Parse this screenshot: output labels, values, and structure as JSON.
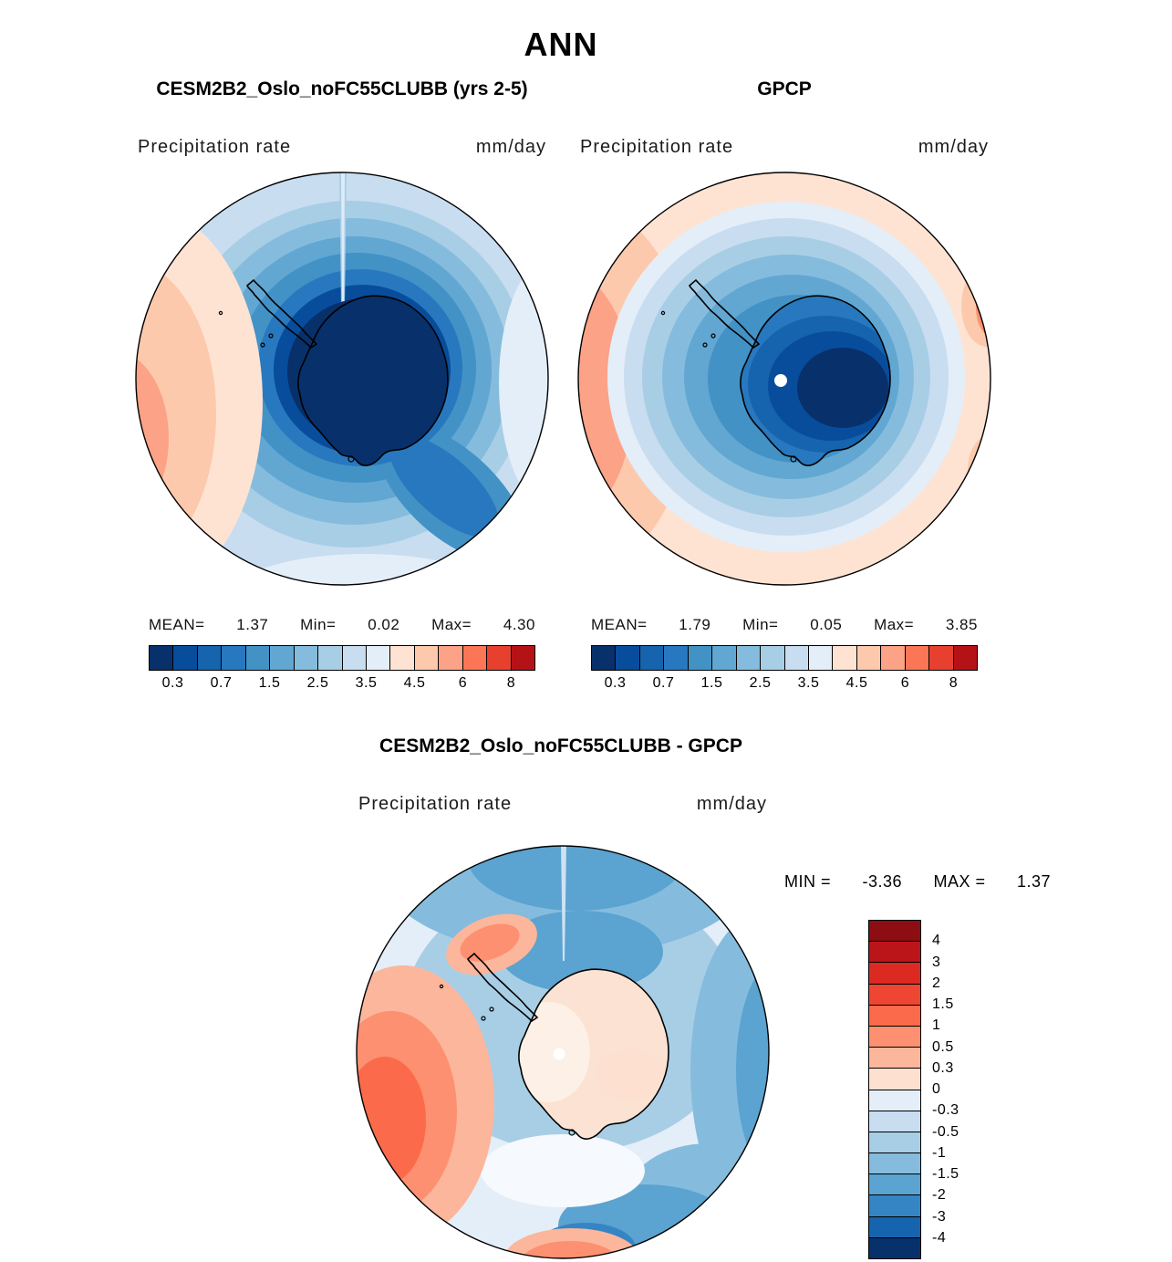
{
  "title": "ANN",
  "panels": [
    {
      "subtitle": "CESM2B2_Oslo_noFC55CLUBB (yrs 2-5)",
      "field_label": "Precipitation rate",
      "units": "mm/day",
      "stats": {
        "mean_label": "MEAN=",
        "mean": "1.37",
        "min_label": "Min=",
        "min": "0.02",
        "max_label": "Max=",
        "max": "4.30"
      },
      "colorbar_tick_labels": [
        "0.3",
        "0.7",
        "1.5",
        "2.5",
        "3.5",
        "4.5",
        "6",
        "8"
      ]
    },
    {
      "subtitle": "GPCP",
      "field_label": "Precipitation rate",
      "units": "mm/day",
      "stats": {
        "mean_label": "MEAN=",
        "mean": "1.79",
        "min_label": "Min=",
        "min": "0.05",
        "max_label": "Max=",
        "max": "3.85"
      },
      "colorbar_tick_labels": [
        "0.3",
        "0.7",
        "1.5",
        "2.5",
        "3.5",
        "4.5",
        "6",
        "8"
      ]
    }
  ],
  "precip_colorbar": {
    "colors": [
      "#08306b",
      "#084d9c",
      "#1663ae",
      "#2878bf",
      "#4292c6",
      "#61a7d2",
      "#85bcdd",
      "#a8cee6",
      "#c9ddf0",
      "#e3eef9",
      "#fee3d3",
      "#fdc9ac",
      "#fca286",
      "#fb7656",
      "#e8402f",
      "#b51218"
    ]
  },
  "diff": {
    "title": "CESM2B2_Oslo_noFC55CLUBB - GPCP",
    "field_label": "Precipitation rate",
    "units": "mm/day",
    "stats": {
      "min_label": "MIN =",
      "min": "-3.36",
      "max_label": "MAX =",
      "max": "1.37"
    },
    "colorbar": {
      "labels": [
        "4",
        "3",
        "2",
        "1.5",
        "1",
        "0.5",
        "0.3",
        "0",
        "-0.3",
        "-0.5",
        "-1",
        "-1.5",
        "-2",
        "-3",
        "-4"
      ],
      "colors": [
        "#8c0d12",
        "#bb1419",
        "#dc2a23",
        "#ef4533",
        "#fb6a4a",
        "#fc9070",
        "#fcb69b",
        "#fee0d0",
        "#e4eef8",
        "#c9ddf0",
        "#a8cee6",
        "#85bcdd",
        "#5ba3d0",
        "#3585c4",
        "#1663ae",
        "#08306b"
      ]
    }
  },
  "chart_data": [
    {
      "type": "heatmap",
      "subtype": "polar-stereographic-filled-contour-map",
      "title": "CESM2B2_Oslo_noFC55CLUBB (yrs 2-5)",
      "variable": "Precipitation rate",
      "units": "mm/day",
      "region": "Antarctica / Southern Ocean (south polar view)",
      "stats": {
        "mean": 1.37,
        "min": 0.02,
        "max": 4.3
      },
      "contour_levels": [
        0.3,
        0.7,
        1.5,
        2.5,
        3.5,
        4.5,
        6,
        8
      ],
      "palette": "blue (low) to red (high), 16 bands",
      "legend_position": "bottom",
      "notes": "Lowest values (dark blue) over Antarctic interior; highest values (orange/red) toward map edge at lower latitudes, strongest on left edge"
    },
    {
      "type": "heatmap",
      "subtype": "polar-stereographic-filled-contour-map",
      "title": "GPCP",
      "variable": "Precipitation rate",
      "units": "mm/day",
      "region": "Antarctica / Southern Ocean (south polar view)",
      "stats": {
        "mean": 1.79,
        "min": 0.05,
        "max": 3.85
      },
      "contour_levels": [
        0.3,
        0.7,
        1.5,
        2.5,
        3.5,
        4.5,
        6,
        8
      ],
      "palette": "blue (low) to red (high), 16 bands",
      "legend_position": "bottom",
      "notes": "Dark-blue minimum centered over East Antarctica; peach/orange ring around full map edge; white dot of missing data at the pole"
    },
    {
      "type": "heatmap",
      "subtype": "polar-stereographic-filled-contour-difference-map",
      "title": "CESM2B2_Oslo_noFC55CLUBB - GPCP",
      "variable": "Precipitation rate",
      "units": "mm/day",
      "region": "Antarctica / Southern Ocean (south polar view)",
      "stats": {
        "min": -3.36,
        "max": 1.37
      },
      "contour_levels": [
        -4,
        -3,
        -2,
        -1.5,
        -1,
        -0.5,
        -0.3,
        0,
        0.3,
        0.5,
        1,
        1.5,
        2,
        3,
        4
      ],
      "palette": "red positive, blue negative, 16 bands",
      "legend_position": "right",
      "notes": "Slightly positive (pale peach, 0 to 0.3) over continent interior; negative (blue, -0.3 to -2) over surrounding ocean; positive orange patches (0.5 to 2) along left edge; white dot at pole"
    }
  ]
}
